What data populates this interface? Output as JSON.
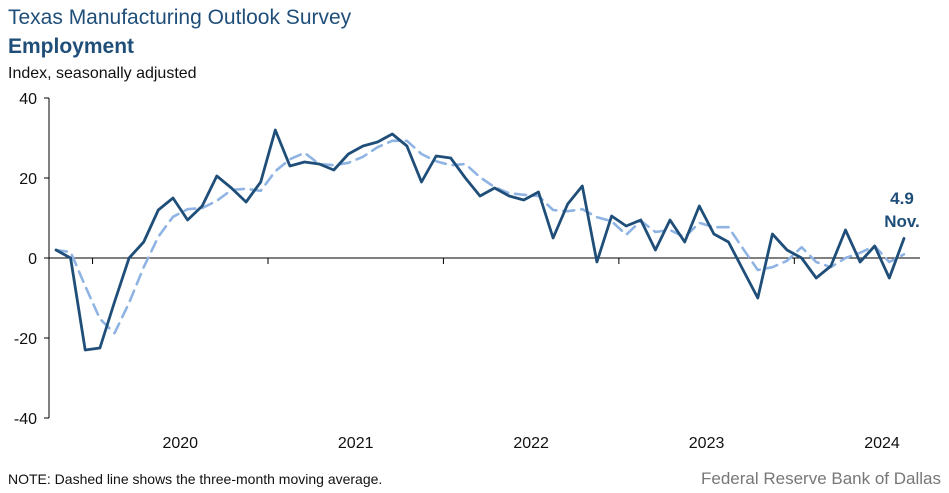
{
  "header": {
    "title": "Texas Manufacturing Outlook Survey",
    "subtitle": "Employment",
    "ylabel": "Index, seasonally adjusted"
  },
  "footer": {
    "note": "NOTE: Dashed line shows the three-month moving average.",
    "source": "Federal Reserve Bank of Dallas"
  },
  "colors": {
    "series": "#1f4e79",
    "moving_average": "#8fb4e3",
    "axis": "#000000"
  },
  "chart_data": {
    "type": "line",
    "ylim": [
      -40,
      40
    ],
    "yticks": [
      40,
      20,
      0,
      -20,
      -40
    ],
    "year_labels": [
      "2020",
      "2021",
      "2022",
      "2023",
      "2024"
    ],
    "x_start": "2019-10",
    "x_end": "2024-11",
    "series": [
      {
        "style": "solid",
        "values": [
          2.0,
          0.0,
          -23.0,
          -22.5,
          -11.0,
          0.0,
          4.0,
          12.0,
          15.0,
          9.5,
          13.0,
          20.5,
          17.5,
          14.0,
          19.0,
          32.0,
          23.0,
          24.0,
          23.5,
          22.0,
          26.0,
          28.0,
          29.0,
          31.0,
          28.0,
          19.0,
          25.5,
          25.0,
          20.0,
          15.5,
          17.5,
          15.5,
          14.5,
          16.5,
          5.0,
          13.5,
          18.0,
          -1.0,
          10.5,
          8.0,
          9.5,
          2.0,
          9.5,
          4.0,
          13.0,
          6.0,
          4.0,
          -3.0,
          -10.0,
          6.0,
          2.0,
          0.0,
          -5.0,
          -2.0,
          7.0,
          -1.0,
          3.0,
          -5.0,
          4.9
        ]
      },
      {
        "style": "dashed",
        "values": [
          2.0,
          1.5,
          -7.0,
          -15.2,
          -18.8,
          -11.2,
          -2.3,
          5.3,
          10.3,
          12.2,
          12.5,
          14.3,
          17.0,
          17.3,
          16.8,
          21.7,
          24.7,
          26.3,
          23.5,
          23.2,
          23.8,
          25.3,
          27.7,
          29.3,
          29.3,
          26.0,
          24.2,
          23.2,
          23.5,
          20.2,
          17.7,
          16.2,
          15.8,
          15.5,
          12.0,
          11.7,
          12.2,
          10.2,
          9.2,
          5.8,
          9.3,
          6.5,
          7.0,
          5.2,
          8.8,
          7.7,
          7.7,
          2.3,
          -3.0,
          -2.3,
          -0.7,
          2.7,
          -1.0,
          -2.3,
          0.0,
          1.3,
          3.0,
          -1.0,
          0.9
        ]
      }
    ],
    "annotation": {
      "value": "4.9",
      "label": "Nov."
    }
  }
}
